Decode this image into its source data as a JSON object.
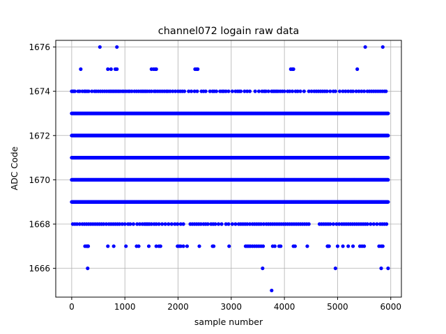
{
  "chart_data": {
    "type": "scatter",
    "title": "channel072 logain raw data",
    "xlabel": "sample number",
    "ylabel": "ADC Code",
    "xlim": [
      -300,
      6200
    ],
    "ylim": [
      1664.7,
      1676.3
    ],
    "xticks": [
      0,
      1000,
      2000,
      3000,
      4000,
      5000,
      6000
    ],
    "yticks": [
      1666,
      1668,
      1670,
      1672,
      1674,
      1676
    ],
    "grid": true,
    "marker_color": "#0000ff",
    "series": [
      {
        "dense_levels": [
          1669,
          1670,
          1671,
          1672,
          1673
        ],
        "dense_x_range": [
          0,
          5950
        ],
        "sparse_levels": {
          "1674": [
            0,
            20,
            40,
            60,
            120,
            150,
            200,
            240,
            260,
            290,
            320,
            380,
            430,
            460,
            500,
            540,
            580,
            620,
            660,
            700,
            730,
            760,
            790,
            820,
            850,
            880,
            910,
            950,
            980,
            1020,
            1060,
            1090,
            1130,
            1180,
            1220,
            1260,
            1300,
            1330,
            1360,
            1390,
            1420,
            1460,
            1500,
            1550,
            1580,
            1620,
            1660,
            1700,
            1740,
            1780,
            1810,
            1850,
            1900,
            1950,
            2000,
            2040,
            2080,
            2120,
            2200,
            2250,
            2310,
            2360,
            2440,
            2480,
            2520,
            2600,
            2650,
            2680,
            2720,
            2790,
            2830,
            2860,
            2900,
            2950,
            3020,
            3080,
            3120,
            3150,
            3180,
            3250,
            3300,
            3350,
            3450,
            3520,
            3580,
            3620,
            3650,
            3700,
            3760,
            3790,
            3820,
            3850,
            3880,
            3920,
            3960,
            4000,
            4060,
            4100,
            4150,
            4210,
            4250,
            4300,
            4370,
            4460,
            4510,
            4560,
            4600,
            4640,
            4680,
            4720,
            4760,
            4800,
            4860,
            4920,
            4960,
            5040,
            5100,
            5150,
            5200,
            5250,
            5290,
            5350,
            5400,
            5450,
            5500,
            5560,
            5600,
            5640,
            5680,
            5720,
            5760,
            5800,
            5840,
            5880,
            5910
          ],
          "1668": [
            20,
            60,
            100,
            150,
            200,
            240,
            280,
            320,
            360,
            400,
            440,
            480,
            520,
            560,
            600,
            650,
            700,
            740,
            780,
            820,
            860,
            900,
            950,
            1000,
            1060,
            1100,
            1160,
            1230,
            1280,
            1330,
            1370,
            1400,
            1430,
            1460,
            1500,
            1550,
            1590,
            1640,
            1700,
            1760,
            1820,
            1880,
            1940,
            1990,
            2050,
            2100,
            2230,
            2270,
            2310,
            2350,
            2390,
            2430,
            2480,
            2520,
            2560,
            2620,
            2660,
            2700,
            2760,
            2820,
            2900,
            2950,
            3020,
            3080,
            3140,
            3180,
            3220,
            3260,
            3300,
            3350,
            3400,
            3440,
            3480,
            3520,
            3560,
            3610,
            3660,
            3700,
            3740,
            3780,
            3820,
            3860,
            3900,
            3940,
            3980,
            4020,
            4060,
            4100,
            4140,
            4180,
            4220,
            4260,
            4300,
            4340,
            4380,
            4420,
            4460,
            4660,
            4700,
            4740,
            4780,
            4820,
            4860,
            4920,
            4980,
            5030,
            5080,
            5120,
            5160,
            5200,
            5240,
            5280,
            5320,
            5360,
            5400,
            5440,
            5480,
            5520,
            5560,
            5620,
            5680,
            5740,
            5800,
            5840,
            5880,
            5920
          ],
          "1675": [
            170,
            680,
            740,
            820,
            850,
            1500,
            1540,
            1570,
            1590,
            2320,
            2350,
            2370,
            4120,
            4150,
            4170,
            5370
          ],
          "1667": [
            250,
            280,
            300,
            310,
            680,
            790,
            1020,
            1220,
            1260,
            1450,
            1590,
            1640,
            1670,
            1990,
            2020,
            2050,
            2100,
            2170,
            2400,
            2650,
            2670,
            2960,
            3270,
            3300,
            3330,
            3360,
            3400,
            3440,
            3480,
            3520,
            3560,
            3600,
            3780,
            3820,
            3900,
            3930,
            4170,
            4200,
            4430,
            4810,
            4820,
            4840,
            5000,
            5100,
            5200,
            5290,
            5420,
            5460,
            5500,
            5780,
            5820,
            5850
          ],
          "1676": [
            530,
            850,
            5520,
            5850
          ],
          "1666": [
            300,
            3590,
            4960,
            5820,
            5950
          ],
          "1665": [
            3760
          ]
        }
      }
    ]
  }
}
